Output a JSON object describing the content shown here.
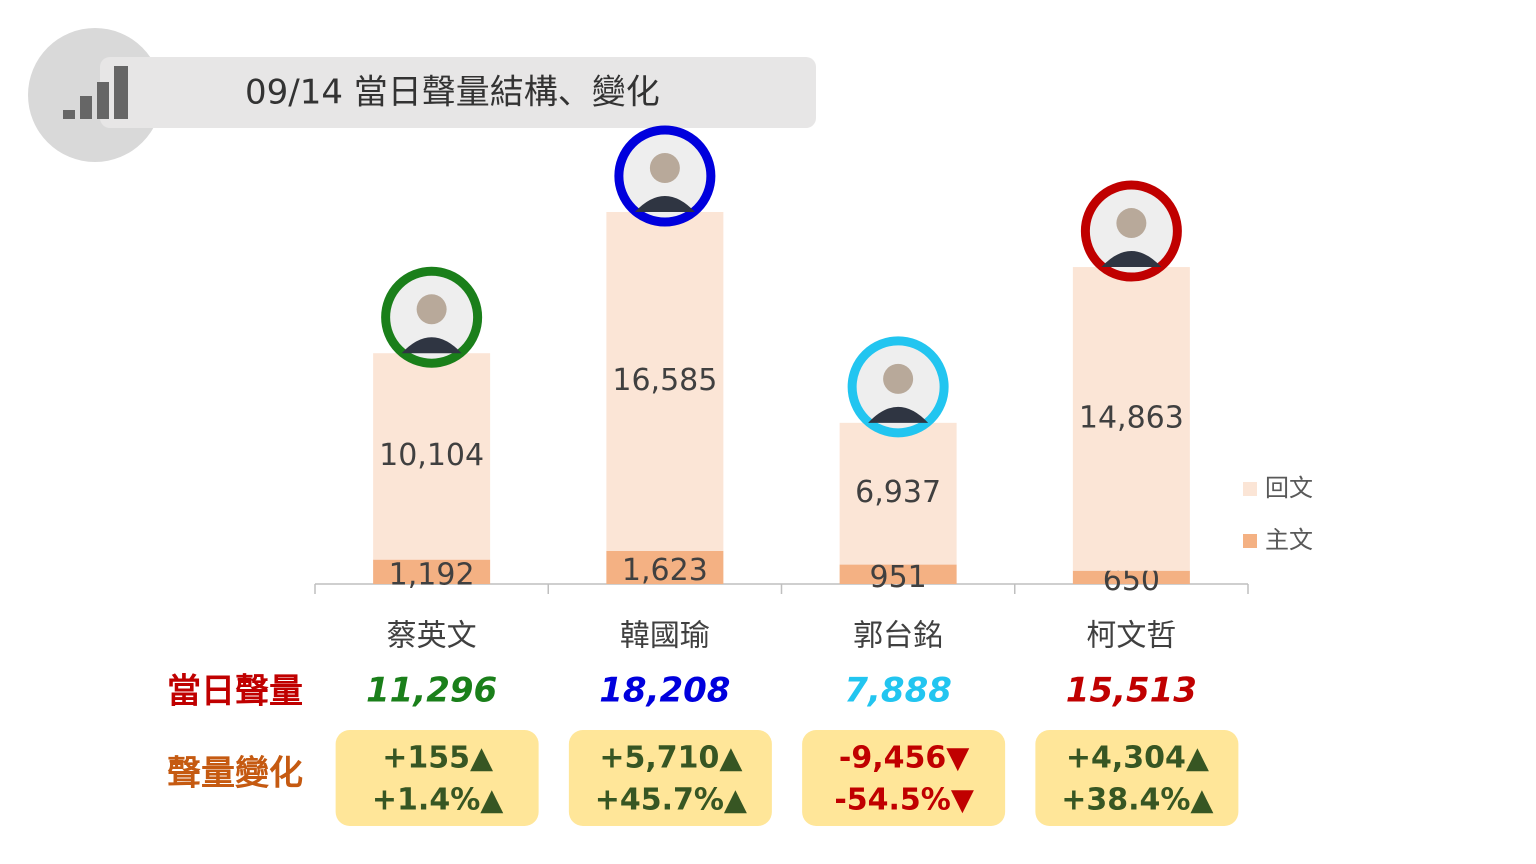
{
  "chart_data": {
    "type": "stacked-bar",
    "title": "09/14 當日聲量結構、變化",
    "categories": [
      "蔡英文",
      "韓國瑜",
      "郭台銘",
      "柯文哲"
    ],
    "candidate_colors": [
      "#1a7f1a",
      "#0000dd",
      "#22c5f0",
      "#c00000"
    ],
    "series": [
      {
        "name": "主文",
        "color": "#f4b183",
        "values": [
          1192,
          1623,
          951,
          650
        ],
        "value_labels": [
          "1,192",
          "1,623",
          "951",
          "650"
        ]
      },
      {
        "name": "回文",
        "color": "#fbe5d6",
        "values": [
          10104,
          16585,
          6937,
          14863
        ],
        "value_labels": [
          "10,104",
          "16,585",
          "6,937",
          "14,863"
        ]
      }
    ]
  },
  "summary": {
    "total_label": "當日聲量",
    "totals": [
      11296,
      18208,
      7888,
      15513
    ],
    "total_labels": [
      "11,296",
      "18,208",
      "7,888",
      "15,513"
    ],
    "change_label": "聲量變化",
    "changes": [
      155,
      5710,
      -9456,
      4304
    ],
    "change_labels": [
      "+155▲",
      "+5,710▲",
      "-9,456▼",
      "+4,304▲"
    ],
    "change_pcts": [
      1.4,
      45.7,
      -54.5,
      38.4
    ],
    "change_pct_labels": [
      "+1.4%▲",
      "+45.7%▲",
      "-54.5%▼",
      "+38.4%▲"
    ]
  }
}
